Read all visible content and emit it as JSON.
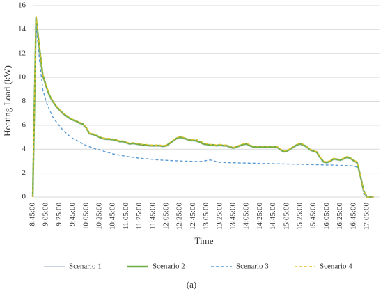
{
  "chart_data": {
    "type": "line",
    "x_label": "Time",
    "y_label": "Heating Load (kW)",
    "caption": "(a)",
    "ylim": [
      0,
      16
    ],
    "yticks": [
      0,
      2,
      4,
      6,
      8,
      10,
      12,
      14,
      16
    ],
    "grid": true,
    "legend": "bottom",
    "categories": [
      "8:45:00",
      null,
      null,
      null,
      "9:05:00",
      null,
      null,
      null,
      "9:25:00",
      null,
      null,
      null,
      "9:45:00",
      null,
      null,
      null,
      "10:05:00",
      null,
      null,
      null,
      "10:25:00",
      null,
      null,
      null,
      "10:45:00",
      null,
      null,
      null,
      "11:05:00",
      null,
      null,
      null,
      "11:25:00",
      null,
      null,
      null,
      "11:45:00",
      null,
      null,
      null,
      "12:05:00",
      null,
      null,
      null,
      "12:25:00",
      null,
      null,
      null,
      "12:45:00",
      null,
      null,
      null,
      "13:05:00",
      null,
      null,
      null,
      "13:25:00",
      null,
      null,
      null,
      "13:45:00",
      null,
      null,
      null,
      "14:05:00",
      null,
      null,
      null,
      "14:25:00",
      null,
      null,
      null,
      "14:45:00",
      null,
      null,
      null,
      "15:05:00",
      null,
      null,
      null,
      "15:25:00",
      null,
      null,
      null,
      "15:45:00",
      null,
      null,
      null,
      "16:05:00",
      null,
      null,
      null,
      "16:25:00",
      null,
      null,
      null,
      "16:45:00",
      null,
      null,
      null,
      "17:05:00",
      null,
      null
    ],
    "series": [
      {
        "name": "Scenario 1",
        "color": "#c8d2dc",
        "width": 2,
        "dash": "none",
        "values": [
          0,
          14.9,
          12.4,
          10.1,
          9.2,
          8.4,
          7.95,
          7.55,
          7.25,
          6.95,
          6.75,
          6.55,
          6.4,
          6.3,
          6.15,
          6.05,
          5.75,
          5.25,
          5.2,
          5.1,
          4.95,
          4.85,
          4.8,
          4.8,
          4.75,
          4.7,
          4.6,
          4.6,
          4.5,
          4.4,
          4.45,
          4.4,
          4.35,
          4.3,
          4.3,
          4.25,
          4.25,
          4.25,
          4.25,
          4.2,
          4.25,
          4.45,
          4.65,
          4.85,
          4.95,
          4.9,
          4.8,
          4.7,
          4.7,
          4.65,
          4.55,
          4.4,
          4.35,
          4.3,
          4.3,
          4.25,
          4.3,
          4.25,
          4.25,
          4.15,
          4.05,
          4.15,
          4.25,
          4.35,
          4.4,
          4.25,
          4.15,
          4.15,
          4.15,
          4.15,
          4.15,
          4.15,
          4.15,
          4.15,
          3.95,
          3.75,
          3.8,
          3.95,
          4.15,
          4.3,
          4.4,
          4.3,
          4.15,
          3.9,
          3.8,
          3.7,
          3.25,
          2.9,
          2.85,
          2.95,
          3.15,
          3.1,
          3.05,
          3.15,
          3.3,
          3.2,
          3.0,
          2.85,
          1.75,
          0.5,
          0,
          0,
          0
        ]
      },
      {
        "name": "Scenario 2",
        "color": "#70ad47",
        "width": 2.4,
        "dash": "none",
        "values": [
          0,
          15,
          12.5,
          10.2,
          9.3,
          8.5,
          8.0,
          7.6,
          7.3,
          7.0,
          6.8,
          6.6,
          6.45,
          6.35,
          6.2,
          6.1,
          5.8,
          5.3,
          5.25,
          5.15,
          5.0,
          4.9,
          4.85,
          4.85,
          4.8,
          4.75,
          4.65,
          4.65,
          4.55,
          4.45,
          4.5,
          4.45,
          4.4,
          4.35,
          4.35,
          4.3,
          4.3,
          4.3,
          4.3,
          4.25,
          4.3,
          4.5,
          4.7,
          4.9,
          5.0,
          4.95,
          4.85,
          4.75,
          4.75,
          4.7,
          4.6,
          4.45,
          4.4,
          4.35,
          4.35,
          4.3,
          4.35,
          4.3,
          4.3,
          4.2,
          4.1,
          4.2,
          4.3,
          4.4,
          4.45,
          4.3,
          4.2,
          4.2,
          4.2,
          4.2,
          4.2,
          4.2,
          4.2,
          4.2,
          4.0,
          3.8,
          3.85,
          4.0,
          4.2,
          4.35,
          4.45,
          4.35,
          4.2,
          3.95,
          3.85,
          3.75,
          3.3,
          2.95,
          2.9,
          3.0,
          3.2,
          3.15,
          3.1,
          3.2,
          3.35,
          3.25,
          3.05,
          2.9,
          1.8,
          0.5,
          0,
          0,
          0
        ]
      },
      {
        "name": "Scenario 3",
        "color": "#5b9bd5",
        "width": 1.4,
        "dash": "4 3",
        "values": [
          0,
          14.5,
          11.5,
          9.0,
          8.0,
          7.3,
          6.7,
          6.3,
          5.95,
          5.6,
          5.35,
          5.1,
          4.9,
          4.75,
          4.6,
          4.45,
          4.3,
          4.2,
          4.1,
          4.0,
          3.95,
          3.85,
          3.75,
          3.7,
          3.6,
          3.55,
          3.5,
          3.45,
          3.4,
          3.35,
          3.32,
          3.28,
          3.25,
          3.22,
          3.2,
          3.17,
          3.15,
          3.12,
          3.1,
          3.08,
          3.07,
          3.05,
          3.04,
          3.03,
          3.02,
          3.0,
          3.0,
          2.99,
          2.98,
          2.97,
          2.97,
          3.0,
          3.05,
          3.1,
          3.05,
          2.95,
          2.9,
          2.89,
          2.88,
          2.87,
          2.87,
          2.86,
          2.85,
          2.85,
          2.84,
          2.83,
          2.83,
          2.82,
          2.82,
          2.81,
          2.8,
          2.8,
          2.79,
          2.78,
          2.78,
          2.77,
          2.76,
          2.76,
          2.75,
          2.74,
          2.74,
          2.73,
          2.72,
          2.72,
          2.71,
          2.7,
          2.7,
          2.69,
          2.68,
          2.68,
          2.67,
          2.66,
          2.65,
          2.64,
          2.63,
          2.62,
          2.6,
          2.5,
          2.1,
          0.3,
          0,
          0,
          0
        ]
      },
      {
        "name": "Scenario 4",
        "color": "#e3c32a",
        "width": 1.4,
        "dash": "4 3",
        "values": [
          0,
          15.1,
          12.6,
          10.3,
          9.4,
          8.6,
          8.05,
          7.65,
          7.35,
          7.05,
          6.85,
          6.65,
          6.5,
          6.4,
          6.25,
          6.15,
          5.85,
          5.35,
          5.3,
          5.2,
          5.05,
          4.95,
          4.9,
          4.9,
          4.85,
          4.8,
          4.7,
          4.7,
          4.6,
          4.5,
          4.55,
          4.5,
          4.45,
          4.4,
          4.4,
          4.35,
          4.35,
          4.35,
          4.35,
          4.3,
          4.35,
          4.55,
          4.75,
          4.95,
          5.05,
          5.0,
          4.9,
          4.8,
          4.8,
          4.8,
          4.7,
          4.55,
          4.45,
          4.4,
          4.4,
          4.35,
          4.4,
          4.35,
          4.35,
          4.25,
          4.15,
          4.25,
          4.35,
          4.45,
          4.5,
          4.35,
          4.25,
          4.25,
          4.25,
          4.25,
          4.25,
          4.25,
          4.25,
          4.25,
          4.05,
          3.85,
          3.9,
          4.05,
          4.25,
          4.4,
          4.5,
          4.4,
          4.25,
          4.0,
          3.9,
          3.8,
          3.35,
          3.0,
          2.95,
          3.05,
          3.25,
          3.2,
          3.15,
          3.25,
          3.4,
          3.3,
          3.1,
          2.95,
          1.85,
          0.5,
          0,
          0,
          0
        ]
      }
    ]
  }
}
